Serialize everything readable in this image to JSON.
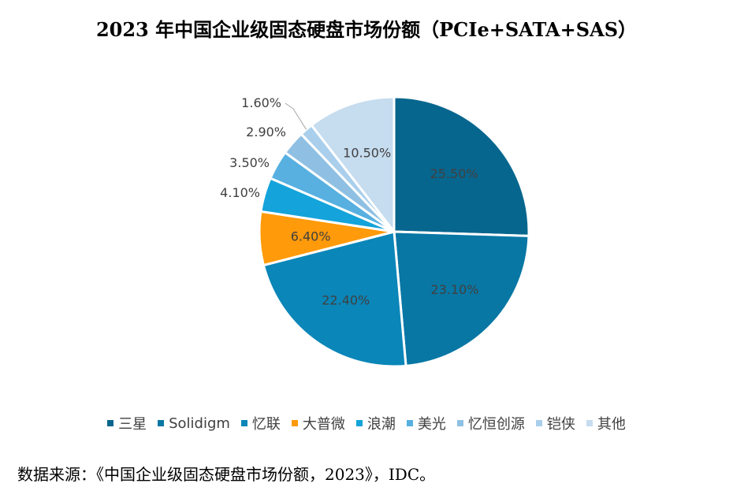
{
  "chart_data": {
    "type": "pie",
    "title": "2023 年中国企业级固态硬盘市场份额（PCIe+SATA+SAS）",
    "categories": [
      "三星",
      "Solidigm",
      "忆联",
      "大普微",
      "浪潮",
      "美光",
      "忆恒创源",
      "铠侠",
      "其他"
    ],
    "values": [
      25.5,
      23.1,
      22.4,
      6.4,
      4.1,
      3.5,
      2.9,
      1.6,
      10.5
    ],
    "value_labels": [
      "25.50%",
      "23.10%",
      "22.40%",
      "6.40%",
      "4.10%",
      "3.50%",
      "2.90%",
      "1.60%",
      "10.50%"
    ],
    "colors": [
      "#07668e",
      "#0877a4",
      "#0a86b8",
      "#ff9a0a",
      "#14a3da",
      "#57b0e0",
      "#8fc0e3",
      "#a9cfec",
      "#c6dcef"
    ],
    "legend_position": "bottom"
  },
  "source": "数据来源：《中国企业级固态硬盘市场份额，2023》，IDC。"
}
